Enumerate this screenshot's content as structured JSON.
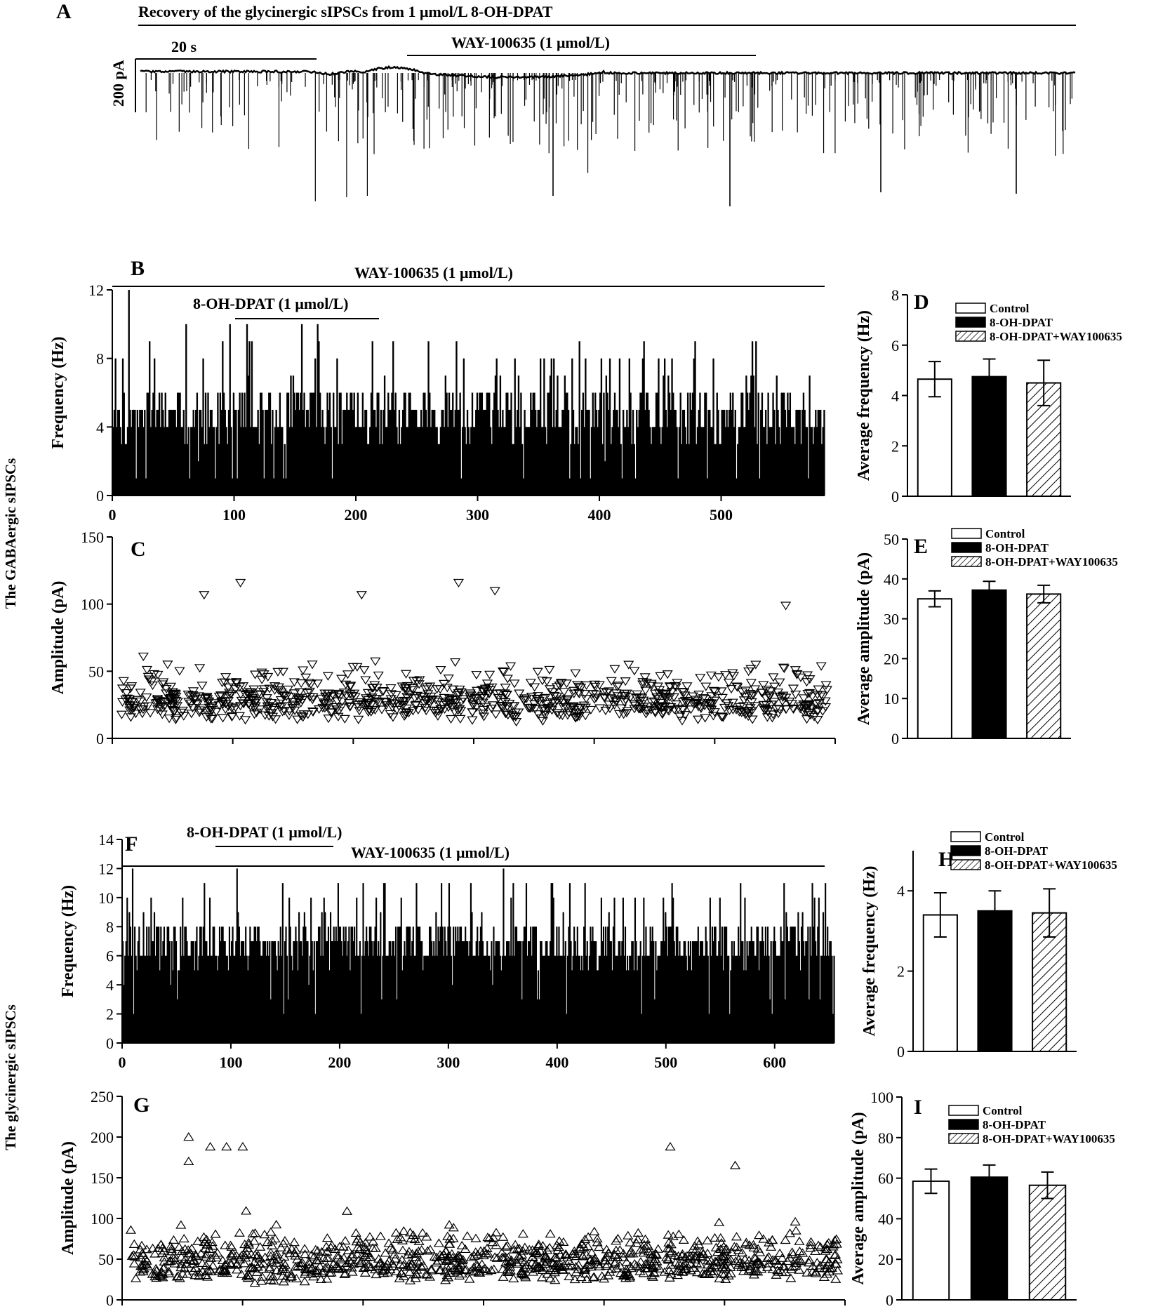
{
  "colors": {
    "ink": "#000000",
    "background": "#ffffff"
  },
  "panels": {
    "A": {
      "letter": "A",
      "title": "Recovery of the glycinergic  sIPSCs from 1 μmol/L 8-OH-DPAT",
      "scale_time": "20 s",
      "scale_current": "200 pA",
      "drug_bar": "WAY-100635 (1 μmol/L)"
    },
    "B": {
      "letter": "B",
      "drug_bar_outer": "WAY-100635 (1 μmol/L)",
      "drug_bar_inner": "8-OH-DPAT (1 μmol/L)"
    },
    "C": {
      "letter": "C"
    },
    "D": {
      "letter": "D"
    },
    "E": {
      "letter": "E"
    },
    "F": {
      "letter": "F",
      "drug_bar_inner": "8-OH-DPAT (1 μmol/L)",
      "drug_bar_outer": "WAY-100635 (1 μmol/L)"
    },
    "G": {
      "letter": "G"
    },
    "H": {
      "letter": "H"
    },
    "I": {
      "letter": "I"
    }
  },
  "row_labels": {
    "gaba": "The GABAergic sIPSCs",
    "gly": "The glycinergic sIPSCs"
  },
  "chart_data": [
    {
      "id": "B",
      "type": "bar",
      "description_of_series": "sIPSC frequency histogram over time (GABAergic)",
      "ylabel": "Frequency (Hz)",
      "xlabel": "",
      "xlim": [
        0,
        585
      ],
      "ylim": [
        0,
        12
      ],
      "xticks": [
        0,
        100,
        200,
        300,
        400,
        500
      ],
      "yticks": [
        0,
        4,
        8,
        12
      ],
      "seed": 11,
      "bins": 585,
      "baseline_hz": 4.7,
      "peaks": [
        [
          13,
          12
        ],
        [
          155,
          10
        ],
        [
          110,
          10
        ],
        [
          60,
          10
        ]
      ]
    },
    {
      "id": "C",
      "type": "scatter",
      "marker": "triangle-down",
      "ylabel": "Amplitude (pA)",
      "xlabel": "",
      "xlim": [
        0,
        585
      ],
      "ylim": [
        0,
        150
      ],
      "yticks": [
        0,
        50,
        100,
        150
      ],
      "seed": 23,
      "points": 900,
      "median_pa": 28,
      "outliers": [
        [
          100,
          116
        ],
        [
          280,
          116
        ],
        [
          310,
          110
        ],
        [
          70,
          107
        ],
        [
          200,
          107
        ],
        [
          550,
          99
        ]
      ]
    },
    {
      "id": "D",
      "type": "bar",
      "ylabel": "Average frequency (Hz)",
      "categories": [
        "Control",
        "8-OH-DPAT",
        "8-OH-DPAT+WAY100635"
      ],
      "values": [
        4.65,
        4.75,
        4.5
      ],
      "errors": [
        0.7,
        0.7,
        0.9
      ],
      "fills": [
        "white",
        "black",
        "hatch"
      ],
      "ylim": [
        0,
        8
      ],
      "yticks": [
        0,
        2,
        4,
        6,
        8
      ],
      "legend": [
        "Control",
        "8-OH-DPAT",
        "8-OH-DPAT+WAY100635"
      ]
    },
    {
      "id": "E",
      "type": "bar",
      "ylabel": "Average amplitude (pA)",
      "categories": [
        "Control",
        "8-OH-DPAT",
        "8-OH-DPAT+WAY100635"
      ],
      "values": [
        35,
        37.2,
        36.2
      ],
      "errors": [
        2,
        2.2,
        2.2
      ],
      "fills": [
        "white",
        "black",
        "hatch"
      ],
      "ylim": [
        0,
        50
      ],
      "yticks": [
        0,
        10,
        20,
        30,
        40,
        50
      ],
      "legend": [
        "Control",
        "8-OH-DPAT",
        "8-OH-DPAT+WAY100635"
      ]
    },
    {
      "id": "F",
      "type": "bar",
      "description_of_series": "sIPSC frequency histogram over time (glycinergic)",
      "ylabel": "Frequency (Hz)",
      "xlabel": "",
      "xlim": [
        0,
        655
      ],
      "ylim": [
        0,
        14
      ],
      "xticks": [
        0,
        100,
        200,
        300,
        400,
        500,
        600
      ],
      "yticks": [
        0,
        2,
        4,
        6,
        8,
        10,
        12,
        14
      ],
      "seed": 37,
      "bins": 655,
      "baseline_hz": 6.8,
      "peaks": [
        [
          350,
          12
        ],
        [
          75,
          11
        ],
        [
          240,
          11
        ],
        [
          320,
          11
        ],
        [
          505,
          11
        ]
      ]
    },
    {
      "id": "G",
      "type": "scatter",
      "marker": "triangle-up",
      "ylabel": "Amplitude (pA)",
      "xlabel": "",
      "xlim": [
        0,
        655
      ],
      "ylim": [
        0,
        250
      ],
      "yticks": [
        0,
        50,
        100,
        150,
        200,
        250
      ],
      "seed": 53,
      "points": 1000,
      "median_pa": 48,
      "outliers": [
        [
          55,
          200
        ],
        [
          75,
          188
        ],
        [
          90,
          188
        ],
        [
          105,
          188
        ],
        [
          500,
          188
        ],
        [
          55,
          170
        ],
        [
          560,
          165
        ]
      ]
    },
    {
      "id": "H",
      "type": "bar",
      "ylabel": "Average frequency (Hz)",
      "categories": [
        "Control",
        "8-OH-DPAT",
        "8-OH-DPAT+WAY100635"
      ],
      "values": [
        3.4,
        3.5,
        3.45
      ],
      "errors": [
        0.55,
        0.5,
        0.6
      ],
      "fills": [
        "white",
        "black",
        "hatch"
      ],
      "ylim": [
        0,
        5
      ],
      "yticks": [
        0,
        2,
        4
      ],
      "legend": [
        "Control",
        "8-OH-DPAT",
        "8-OH-DPAT+WAY100635"
      ]
    },
    {
      "id": "I",
      "type": "bar",
      "ylabel": "Average amplitude (pA)",
      "categories": [
        "Control",
        "8-OH-DPAT",
        "8-OH-DPAT+WAY100635"
      ],
      "values": [
        58.5,
        60.5,
        56.5
      ],
      "errors": [
        6,
        6,
        6.5
      ],
      "fills": [
        "white",
        "black",
        "hatch"
      ],
      "ylim": [
        0,
        100
      ],
      "yticks": [
        0,
        20,
        40,
        60,
        80,
        100
      ],
      "legend": [
        "Control",
        "8-OH-DPAT",
        "8-OH-DPAT+WAY100635"
      ]
    }
  ]
}
